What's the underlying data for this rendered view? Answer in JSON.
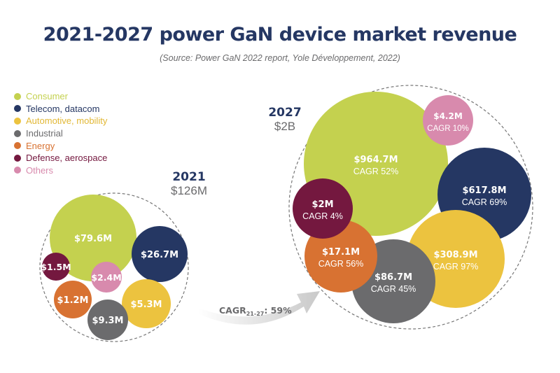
{
  "title": "2021-2027 power GaN device market revenue",
  "subtitle": "(Source: Power GaN 2022 report, Yole Développement, 2022)",
  "chart_data": {
    "type": "bubble",
    "title": "2021-2027 power GaN device market revenue",
    "categories": [
      {
        "name": "Consumer",
        "color": "#c4d14f"
      },
      {
        "name": "Telecom, datacom",
        "color": "#253763"
      },
      {
        "name": "Automotive, mobility",
        "color": "#ecc33f"
      },
      {
        "name": "Industrial",
        "color": "#6b6b6d"
      },
      {
        "name": "Energy",
        "color": "#d87232"
      },
      {
        "name": "Defense, aerospace",
        "color": "#74183f"
      },
      {
        "name": "Others",
        "color": "#d88aad"
      }
    ],
    "years": [
      {
        "year": "2021",
        "total": "$126M",
        "values": [
          "$79.6M",
          "$26.7M",
          "$5.3M",
          "$9.3M",
          "$1.2M",
          "$1.5M",
          "$2.4M"
        ],
        "values_musd": [
          79.6,
          26.7,
          5.3,
          9.3,
          1.2,
          1.5,
          2.4
        ]
      },
      {
        "year": "2027",
        "total": "$2B",
        "values": [
          "$964.7M",
          "$617.8M",
          "$308.9M",
          "$86.7M",
          "$17.1M",
          "$2M",
          "$4.2M"
        ],
        "values_musd": [
          964.7,
          617.8,
          308.9,
          86.7,
          17.1,
          2,
          4.2
        ],
        "cagr": [
          "CAGR 52%",
          "CAGR 69%",
          "CAGR 97%",
          "CAGR 45%",
          "CAGR 56%",
          "CAGR 4%",
          "CAGR 10%"
        ]
      }
    ],
    "overall_cagr": {
      "label": "CAGR",
      "subscript": "21-27",
      "value": ": 59%"
    },
    "legend_position": "top-left"
  }
}
